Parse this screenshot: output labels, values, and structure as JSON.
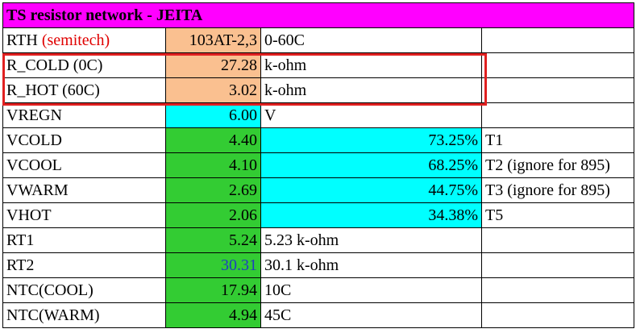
{
  "title": "TS resistor network - JEITA",
  "rows": [
    {
      "label": "RTH",
      "label_note": "(semitech)",
      "value": "103AT-2,3",
      "note": "0-60C"
    },
    {
      "label": "R_COLD (0C)",
      "value": "27.28",
      "note": "k-ohm"
    },
    {
      "label": "R_HOT (60C)",
      "value": "3.02",
      "note": "k-ohm"
    },
    {
      "label": "VREGN",
      "value": "6.00",
      "note": "V"
    },
    {
      "label": "VCOLD",
      "value": "4.40",
      "note": "73.25%",
      "tag": "T1"
    },
    {
      "label": "VCOOL",
      "value": "4.10",
      "note": "68.25%",
      "tag": "T2 (ignore for 895)"
    },
    {
      "label": "VWARM",
      "value": "2.69",
      "note": "44.75%",
      "tag": "T3 (ignore for 895)"
    },
    {
      "label": "VHOT",
      "value": "2.06",
      "note": "34.38%",
      "tag": "T5"
    },
    {
      "label": "RT1",
      "value": "5.24",
      "note": "5.23 k-ohm"
    },
    {
      "label": "RT2",
      "value": "30.31",
      "note": "30.1 k-ohm"
    },
    {
      "label": "NTC(COOL)",
      "value": "17.94",
      "note": "10C"
    },
    {
      "label": "NTC(WARM)",
      "value": "4.94",
      "note": "45C"
    }
  ]
}
